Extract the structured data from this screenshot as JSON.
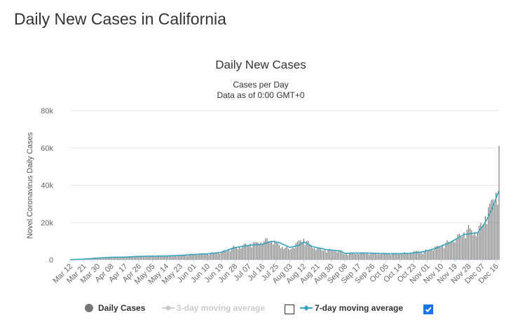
{
  "page": {
    "title": "Daily New Cases in California"
  },
  "legend": {
    "daily": "Daily Cases",
    "ma3": "3-day moving average",
    "ma7": "7-day moving average",
    "ma3_checked": false,
    "ma7_checked": true
  },
  "colors": {
    "bars": "#777777",
    "line": "#38a3bd",
    "disabled": "#cccccc",
    "grid": "#e6e6e6",
    "checkbox": "#1a73e8"
  },
  "chart_data": {
    "type": "bar",
    "title": "Daily New Cases",
    "subtitle": "Cases per Day",
    "subtitle2": "Data as of 0:00 GMT+0",
    "ylabel": "Novel Coronavirus Daily Cases",
    "ylim": [
      0,
      80000
    ],
    "yticks": [
      0,
      20000,
      40000,
      60000,
      80000
    ],
    "ytick_labels": [
      "0",
      "20k",
      "40k",
      "60k",
      "80k"
    ],
    "xticks": [
      "Mar 12",
      "Mar 21",
      "Mar 30",
      "Apr 08",
      "Apr 17",
      "Apr 26",
      "May 05",
      "May 14",
      "May 23",
      "Jun 01",
      "Jun 10",
      "Jun 19",
      "Jun 28",
      "Jul 07",
      "Jul 16",
      "Jul 25",
      "Aug 03",
      "Aug 12",
      "Aug 21",
      "Aug 30",
      "Sep 08",
      "Sep 17",
      "Sep 26",
      "Oct 05",
      "Oct 14",
      "Oct 23",
      "Nov 01",
      "Nov 10",
      "Nov 19",
      "Nov 28",
      "Dec 07",
      "Dec 16"
    ],
    "start_date": "2020-03-12",
    "days": 282,
    "series": [
      {
        "name": "Daily Cases",
        "anchors": [
          [
            0,
            50
          ],
          [
            9,
            300
          ],
          [
            18,
            800
          ],
          [
            27,
            1200
          ],
          [
            36,
            1300
          ],
          [
            45,
            1800
          ],
          [
            54,
            1900
          ],
          [
            63,
            2000
          ],
          [
            72,
            2200
          ],
          [
            81,
            2900
          ],
          [
            90,
            3200
          ],
          [
            99,
            4000
          ],
          [
            108,
            6500
          ],
          [
            117,
            8000
          ],
          [
            126,
            9500
          ],
          [
            132,
            10800
          ],
          [
            138,
            7000
          ],
          [
            144,
            5500
          ],
          [
            150,
            9500
          ],
          [
            153,
            11000
          ],
          [
            159,
            6500
          ],
          [
            168,
            5000
          ],
          [
            177,
            4500
          ],
          [
            180,
            3000
          ],
          [
            186,
            3500
          ],
          [
            195,
            3500
          ],
          [
            204,
            3200
          ],
          [
            213,
            3300
          ],
          [
            222,
            3500
          ],
          [
            228,
            4500
          ],
          [
            231,
            4200
          ],
          [
            240,
            6500
          ],
          [
            249,
            9500
          ],
          [
            258,
            14000
          ],
          [
            262,
            16000
          ],
          [
            267,
            14500
          ],
          [
            272,
            22000
          ],
          [
            276,
            30000
          ],
          [
            279,
            36000
          ],
          [
            280,
            34000
          ],
          [
            281,
            61000
          ]
        ]
      },
      {
        "name": "7-day moving average",
        "anchors": [
          [
            0,
            50
          ],
          [
            9,
            300
          ],
          [
            18,
            900
          ],
          [
            27,
            1300
          ],
          [
            36,
            1400
          ],
          [
            45,
            1800
          ],
          [
            54,
            1900
          ],
          [
            63,
            2000
          ],
          [
            72,
            2300
          ],
          [
            81,
            2800
          ],
          [
            90,
            3100
          ],
          [
            99,
            4000
          ],
          [
            108,
            6500
          ],
          [
            117,
            7700
          ],
          [
            126,
            8300
          ],
          [
            132,
            9900
          ],
          [
            137,
            9200
          ],
          [
            144,
            6600
          ],
          [
            150,
            7700
          ],
          [
            153,
            9600
          ],
          [
            159,
            7000
          ],
          [
            168,
            5400
          ],
          [
            177,
            4700
          ],
          [
            180,
            3400
          ],
          [
            186,
            3600
          ],
          [
            195,
            3600
          ],
          [
            204,
            3300
          ],
          [
            213,
            3200
          ],
          [
            222,
            3400
          ],
          [
            228,
            3900
          ],
          [
            231,
            4200
          ],
          [
            240,
            6200
          ],
          [
            249,
            9300
          ],
          [
            258,
            13500
          ],
          [
            267,
            14500
          ],
          [
            272,
            20000
          ],
          [
            276,
            26500
          ],
          [
            279,
            33000
          ],
          [
            281,
            37000
          ]
        ]
      }
    ]
  }
}
